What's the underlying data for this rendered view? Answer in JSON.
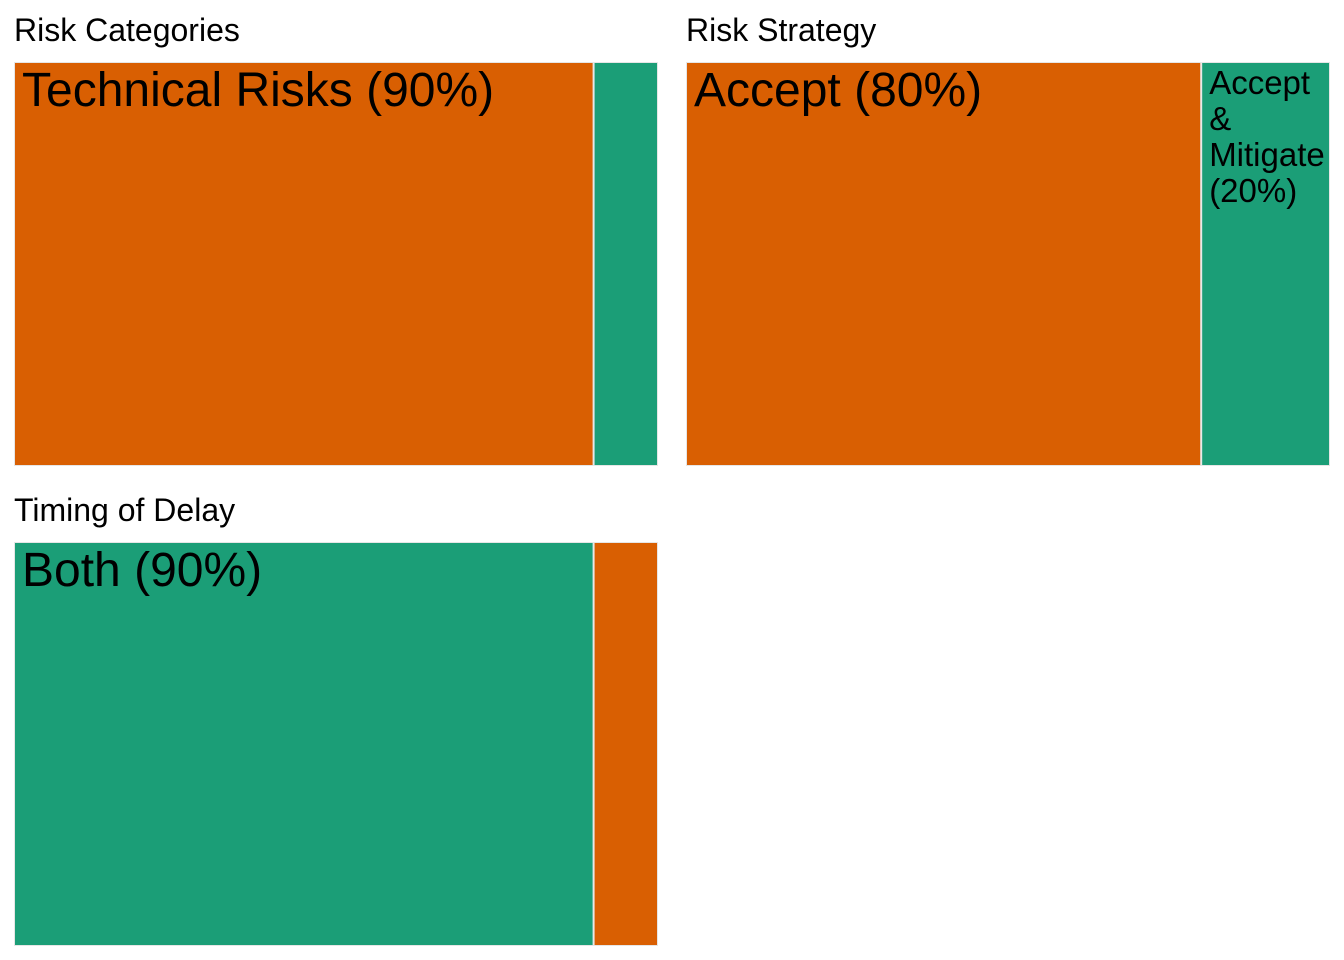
{
  "chart_data": [
    {
      "type": "treemap",
      "title": "Risk Categories",
      "items": [
        {
          "label": "Technical Risks (90%)",
          "value": 90,
          "color": "#d95f02"
        },
        {
          "label": "",
          "value": 10,
          "color": "#1b9e77"
        }
      ]
    },
    {
      "type": "treemap",
      "title": "Risk Strategy",
      "items": [
        {
          "label": "Accept (80%)",
          "value": 80,
          "color": "#d95f02"
        },
        {
          "label": "Accept\n&\nMitigate\n(20%)",
          "value": 20,
          "color": "#1b9e77"
        }
      ]
    },
    {
      "type": "treemap",
      "title": "Timing of Delay",
      "items": [
        {
          "label": "Both (90%)",
          "value": 90,
          "color": "#1b9e77"
        },
        {
          "label": "",
          "value": 10,
          "color": "#d95f02"
        }
      ]
    }
  ]
}
